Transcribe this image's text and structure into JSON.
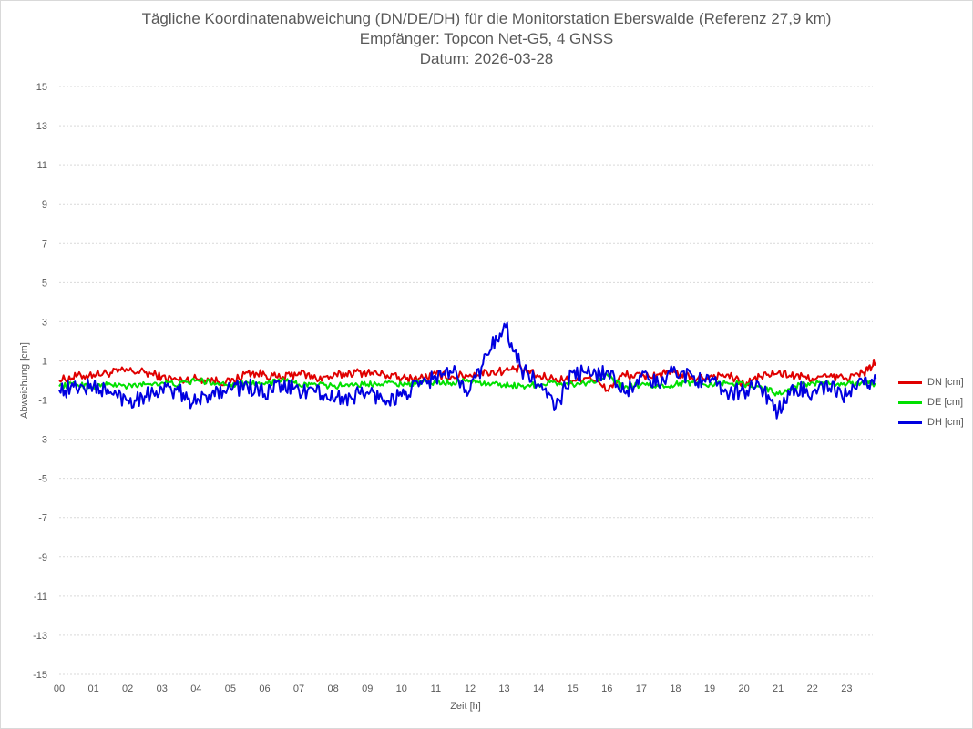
{
  "chart_data": {
    "type": "line",
    "title": "Tägliche Koordinatenabweichung (DN/DE/DH) für die Monitorstation Eberswalde (Referenz 27,9 km)",
    "subtitle": "Empfänger: Topcon Net-G5, 4 GNSS",
    "date_line": "Datum: 2026-03-28",
    "xlabel": "Zeit [h]",
    "ylabel": "Abweichung [cm]",
    "x_ticks": [
      "00",
      "01",
      "02",
      "03",
      "04",
      "05",
      "06",
      "07",
      "08",
      "09",
      "10",
      "11",
      "12",
      "13",
      "14",
      "15",
      "16",
      "17",
      "18",
      "19",
      "20",
      "21",
      "22",
      "23"
    ],
    "y_ticks": [
      "15",
      "13",
      "11",
      "9",
      "7",
      "5",
      "3",
      "1",
      "-1",
      "-3",
      "-5",
      "-7",
      "-9",
      "-11",
      "-13",
      "-15"
    ],
    "xlim": [
      0,
      24
    ],
    "ylim": [
      -15,
      15
    ],
    "grid": "horizontal dotted",
    "legend_position": "right",
    "x_hours": [
      0,
      0.5,
      1,
      1.5,
      2,
      2.5,
      3,
      3.5,
      4,
      4.5,
      5,
      5.5,
      6,
      6.5,
      7,
      7.5,
      8,
      8.5,
      9,
      9.5,
      10,
      10.5,
      11,
      11.5,
      12,
      12.5,
      13,
      13.5,
      14,
      14.5,
      15,
      15.5,
      16,
      16.5,
      17,
      17.5,
      18,
      18.5,
      19,
      19.5,
      20,
      20.5,
      21,
      21.5,
      22,
      22.5,
      23,
      23.5,
      23.85
    ],
    "series": [
      {
        "name": "DN [cm]",
        "color": "#e00000",
        "values": [
          0.0,
          0.2,
          0.3,
          0.4,
          0.5,
          0.4,
          0.2,
          0.0,
          0.1,
          0.0,
          -0.1,
          0.4,
          0.3,
          0.1,
          0.4,
          0.1,
          0.2,
          0.4,
          0.4,
          0.3,
          0.1,
          0.1,
          0.3,
          0.2,
          0.3,
          0.4,
          0.5,
          0.6,
          0.2,
          0.1,
          0.0,
          0.2,
          -0.5,
          0.3,
          0.2,
          0.3,
          0.4,
          0.1,
          0.2,
          0.3,
          -0.2,
          0.2,
          0.4,
          0.2,
          0.1,
          0.2,
          0.1,
          0.4,
          0.9
        ]
      },
      {
        "name": "DE [cm]",
        "color": "#00e000",
        "values": [
          -0.3,
          -0.2,
          -0.3,
          -0.2,
          -0.3,
          -0.2,
          -0.1,
          -0.2,
          0.0,
          -0.1,
          -0.2,
          -0.1,
          -0.2,
          0.0,
          -0.2,
          -0.2,
          -0.3,
          -0.2,
          -0.2,
          -0.1,
          -0.2,
          -0.1,
          -0.1,
          -0.1,
          0.0,
          -0.2,
          -0.2,
          -0.3,
          -0.2,
          -0.1,
          -0.2,
          -0.1,
          0.3,
          -0.4,
          -0.2,
          -0.3,
          -0.2,
          -0.1,
          -0.2,
          -0.1,
          -0.2,
          -0.3,
          -0.7,
          -0.3,
          -0.1,
          -0.2,
          -0.2,
          -0.1,
          -0.2
        ]
      },
      {
        "name": "DH [cm]",
        "color": "#0000e0",
        "values": [
          -0.5,
          -0.4,
          -0.3,
          -0.6,
          -1.0,
          -0.8,
          -0.4,
          -0.6,
          -1.2,
          -0.5,
          -0.4,
          -0.3,
          -0.7,
          -0.2,
          -0.5,
          -0.6,
          -1.0,
          -0.8,
          -0.6,
          -1.0,
          -0.8,
          -0.3,
          0.2,
          0.4,
          -0.5,
          1.3,
          2.9,
          0.6,
          -0.2,
          -1.4,
          0.4,
          0.3,
          0.5,
          -0.6,
          0.2,
          -0.2,
          0.5,
          0.2,
          -0.1,
          -0.6,
          -0.5,
          -0.4,
          -1.6,
          -0.4,
          -0.6,
          -0.4,
          -0.8,
          -0.2,
          0.1
        ]
      }
    ]
  }
}
